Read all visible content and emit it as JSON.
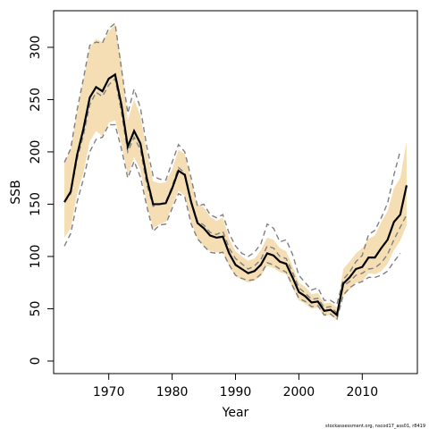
{
  "chart_data": {
    "type": "line",
    "xlabel": "Year",
    "ylabel": "SSB",
    "footnote": "stockassessment.org, nscod17_ass01, r8419",
    "xlim": [
      1961.3,
      2018.7
    ],
    "ylim": [
      -12,
      335
    ],
    "x_ticks": [
      1970,
      1980,
      1990,
      2000,
      2010
    ],
    "y_ticks": [
      0,
      50,
      100,
      150,
      200,
      250,
      300
    ],
    "grid": false,
    "legend": "none",
    "colors": {
      "band": "#f5deb3",
      "estimate": "#000000",
      "previous": "#808080"
    },
    "x": [
      1963,
      1964,
      1965,
      1966,
      1967,
      1968,
      1969,
      1970,
      1971,
      1972,
      1973,
      1974,
      1975,
      1976,
      1977,
      1978,
      1979,
      1980,
      1981,
      1982,
      1983,
      1984,
      1985,
      1986,
      1987,
      1988,
      1989,
      1990,
      1991,
      1992,
      1993,
      1994,
      1995,
      1996,
      1997,
      1998,
      1999,
      2000,
      2001,
      2002,
      2003,
      2004,
      2005,
      2006,
      2007,
      2008,
      2009,
      2010,
      2011,
      2012,
      2013,
      2014,
      2015,
      2016,
      2017
    ],
    "series": [
      {
        "values": [
          152,
          162,
          197,
          222,
          252,
          262,
          258,
          270,
          274,
          245,
          205,
          220,
          208,
          175,
          150,
          150,
          151,
          165,
          182,
          178,
          152,
          132,
          127,
          120,
          118,
          119,
          103,
          92,
          88,
          84,
          86,
          92,
          103,
          101,
          95,
          93,
          80,
          66,
          62,
          56,
          57,
          48,
          49,
          44,
          74,
          80,
          88,
          90,
          99,
          99,
          108,
          116,
          133,
          140,
          168
        ]
      },
      {
        "values": [
          152,
          160,
          193,
          216,
          245,
          257,
          253,
          264,
          270,
          238,
          200,
          214,
          202,
          169,
          148,
          150,
          152,
          167,
          185,
          180,
          153,
          134,
          130,
          123,
          121,
          124,
          108,
          98,
          93,
          88,
          91,
          97,
          110,
          108,
          100,
          98,
          85,
          70,
          65,
          59,
          60,
          51,
          52,
          46,
          72,
          76,
          82,
          84,
          88,
          89,
          94,
          102,
          116,
          128,
          140
        ],
        "style": "dashed"
      }
    ],
    "band": {
      "upper": [
        190,
        202,
        238,
        268,
        300,
        308,
        305,
        315,
        322,
        285,
        230,
        250,
        235,
        200,
        172,
        170,
        171,
        183,
        202,
        198,
        172,
        150,
        147,
        138,
        134,
        137,
        117,
        105,
        100,
        96,
        98,
        106,
        118,
        116,
        108,
        105,
        91,
        75,
        71,
        64,
        65,
        55,
        56,
        51,
        88,
        95,
        103,
        108,
        117,
        120,
        133,
        143,
        165,
        175,
        210
      ],
      "lower": [
        118,
        127,
        160,
        180,
        210,
        220,
        215,
        228,
        230,
        208,
        178,
        195,
        183,
        150,
        127,
        131,
        133,
        148,
        163,
        158,
        133,
        117,
        110,
        105,
        104,
        104,
        91,
        81,
        78,
        75,
        77,
        81,
        91,
        89,
        85,
        83,
        70,
        58,
        55,
        50,
        51,
        43,
        44,
        39,
        62,
        68,
        75,
        76,
        84,
        83,
        86,
        93,
        106,
        115,
        130
      ]
    },
    "prev_band": {
      "upper": [
        190,
        203,
        240,
        270,
        302,
        305,
        304,
        318,
        323,
        280,
        237,
        260,
        242,
        205,
        177,
        174,
        173,
        190,
        207,
        200,
        175,
        148,
        150,
        140,
        137,
        140,
        122,
        110,
        103,
        100,
        104,
        112,
        131,
        127,
        114,
        116,
        102,
        82,
        75,
        68,
        70,
        58,
        58,
        54,
        78,
        85,
        95,
        101,
        121,
        125,
        137,
        151,
        178,
        201,
        0
      ],
      "lower": [
        110,
        122,
        152,
        174,
        200,
        212,
        214,
        226,
        226,
        203,
        175,
        191,
        176,
        148,
        124,
        130,
        131,
        146,
        160,
        157,
        131,
        117,
        110,
        104,
        103,
        104,
        92,
        82,
        79,
        77,
        78,
        83,
        94,
        92,
        88,
        85,
        72,
        60,
        57,
        52,
        53,
        44,
        45,
        40,
        63,
        70,
        74,
        76,
        80,
        80,
        82,
        86,
        95,
        103,
        0
      ]
    }
  }
}
